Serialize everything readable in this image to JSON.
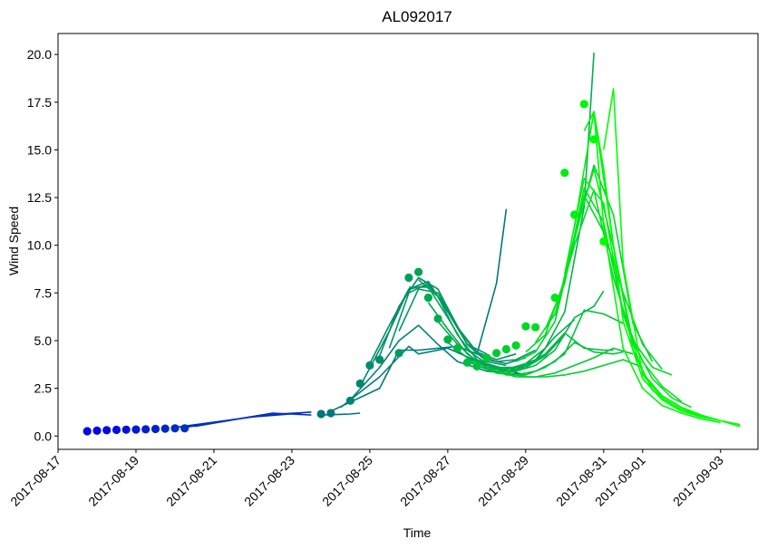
{
  "chart_data": {
    "type": "line",
    "title": "AL092017",
    "xlabel": "Time",
    "ylabel": "Wind Speed",
    "x_type": "date",
    "xlim": [
      "2017-08-17T00:00",
      "2017-09-03T23:00"
    ],
    "ylim": [
      -0.7,
      21.1
    ],
    "xticks": [
      "2017-08-17",
      "2017-08-19",
      "2017-08-21",
      "2017-08-23",
      "2017-08-25",
      "2017-08-27",
      "2017-08-29",
      "2017-08-31",
      "2017-09-01",
      "2017-09-03"
    ],
    "yticks": [
      0.0,
      2.5,
      5.0,
      7.5,
      10.0,
      12.5,
      15.0,
      17.5,
      20.0
    ],
    "ytick_labels": [
      "0.0",
      "2.5",
      "5.0",
      "7.5",
      "10.0",
      "12.5",
      "15.0",
      "17.5",
      "20.0"
    ],
    "grid": false,
    "legend": "none",
    "color_gradient": {
      "start": "#0000ee",
      "end": "#00ff00"
    },
    "observed": {
      "x": [
        "2017-08-17T18:00",
        "2017-08-18T00:00",
        "2017-08-18T06:00",
        "2017-08-18T12:00",
        "2017-08-18T18:00",
        "2017-08-19T00:00",
        "2017-08-19T06:00",
        "2017-08-19T12:00",
        "2017-08-19T18:00",
        "2017-08-20T00:00",
        "2017-08-20T06:00",
        "2017-08-23T18:00",
        "2017-08-24T00:00",
        "2017-08-24T12:00",
        "2017-08-24T18:00",
        "2017-08-25T00:00",
        "2017-08-25T06:00",
        "2017-08-25T18:00",
        "2017-08-26T00:00",
        "2017-08-26T06:00",
        "2017-08-26T12:00",
        "2017-08-26T18:00",
        "2017-08-27T00:00",
        "2017-08-27T06:00",
        "2017-08-27T12:00",
        "2017-08-27T18:00",
        "2017-08-28T00:00",
        "2017-08-28T06:00",
        "2017-08-28T12:00",
        "2017-08-28T18:00",
        "2017-08-29T00:00",
        "2017-08-29T06:00",
        "2017-08-29T18:00",
        "2017-08-30T00:00",
        "2017-08-30T06:00",
        "2017-08-30T12:00",
        "2017-08-30T18:00",
        "2017-08-31T00:00"
      ],
      "y": [
        0.25,
        0.28,
        0.3,
        0.32,
        0.33,
        0.34,
        0.35,
        0.37,
        0.39,
        0.4,
        0.4,
        1.15,
        1.2,
        1.85,
        2.75,
        3.7,
        4.0,
        4.35,
        8.3,
        8.6,
        7.25,
        6.15,
        5.05,
        4.6,
        3.85,
        3.65,
        4.1,
        4.35,
        4.55,
        4.75,
        5.75,
        5.7,
        7.25,
        13.8,
        11.6,
        17.4,
        15.55,
        10.2
      ]
    },
    "forecasts": [
      {
        "x": [
          "2017-08-20T00:00",
          "2017-08-22T00:00",
          "2017-08-23T06:00"
        ],
        "y": [
          0.45,
          1.0,
          1.2
        ]
      },
      {
        "x": [
          "2017-08-20T06:00",
          "2017-08-22T06:00",
          "2017-08-23T12:00"
        ],
        "y": [
          0.45,
          1.1,
          1.25
        ]
      },
      {
        "x": [
          "2017-08-20T12:00",
          "2017-08-22T12:00",
          "2017-08-23T12:00"
        ],
        "y": [
          0.5,
          1.2,
          1.1
        ]
      },
      {
        "x": [
          "2017-08-23T18:00",
          "2017-08-24T12:00",
          "2017-08-24T18:00"
        ],
        "y": [
          1.1,
          1.15,
          1.2
        ]
      },
      {
        "x": [
          "2017-08-24T00:00",
          "2017-08-25T06:00",
          "2017-08-25T18:00",
          "2017-08-26T06:00",
          "2017-08-26T18:00",
          "2017-08-27T06:00",
          "2017-08-27T18:00",
          "2017-08-28T06:00",
          "2017-08-28T12:00"
        ],
        "y": [
          1.3,
          2.5,
          4.5,
          4.5,
          4.6,
          4.7,
          4.3,
          8.0,
          11.9
        ]
      },
      {
        "x": [
          "2017-08-24T06:00",
          "2017-08-25T06:00",
          "2017-08-26T00:00",
          "2017-08-26T06:00",
          "2017-08-27T00:00",
          "2017-08-28T00:00",
          "2017-08-29T00:00"
        ],
        "y": [
          1.5,
          3.1,
          4.7,
          4.3,
          4.6,
          3.7,
          3.2
        ]
      },
      {
        "x": [
          "2017-08-24T12:00",
          "2017-08-25T06:00",
          "2017-08-25T18:00",
          "2017-08-26T06:00",
          "2017-08-26T18:00",
          "2017-08-27T06:00",
          "2017-08-28T00:00",
          "2017-08-29T00:00"
        ],
        "y": [
          1.9,
          3.6,
          5.0,
          5.8,
          4.8,
          3.9,
          3.4,
          3.2
        ]
      },
      {
        "x": [
          "2017-08-24T18:00",
          "2017-08-25T12:00",
          "2017-08-26T00:00",
          "2017-08-26T12:00",
          "2017-08-27T00:00",
          "2017-08-27T12:00",
          "2017-08-28T00:00"
        ],
        "y": [
          2.6,
          5.5,
          7.7,
          8.1,
          6.5,
          4.8,
          4.3
        ]
      },
      {
        "x": [
          "2017-08-25T00:00",
          "2017-08-25T12:00",
          "2017-08-26T00:00",
          "2017-08-26T12:00",
          "2017-08-27T00:00",
          "2017-08-27T12:00",
          "2017-08-28T00:00",
          "2017-08-28T12:00"
        ],
        "y": [
          3.8,
          5.8,
          7.7,
          7.9,
          6.7,
          4.8,
          3.9,
          3.7
        ]
      },
      {
        "x": [
          "2017-08-25T06:00",
          "2017-08-25T18:00",
          "2017-08-26T06:00",
          "2017-08-26T18:00",
          "2017-08-27T06:00",
          "2017-08-27T18:00",
          "2017-08-28T06:00",
          "2017-08-28T18:00"
        ],
        "y": [
          4.2,
          6.8,
          8.3,
          7.7,
          5.7,
          4.4,
          4.0,
          4.3
        ]
      },
      {
        "x": [
          "2017-08-25T12:00",
          "2017-08-26T00:00",
          "2017-08-26T12:00",
          "2017-08-27T00:00",
          "2017-08-27T12:00",
          "2017-08-28T00:00",
          "2017-08-28T12:00",
          "2017-08-29T00:00"
        ],
        "y": [
          4.6,
          7.5,
          8.0,
          6.6,
          4.8,
          4.0,
          3.8,
          4.1
        ]
      },
      {
        "x": [
          "2017-08-25T18:00",
          "2017-08-26T06:00",
          "2017-08-26T18:00",
          "2017-08-27T06:00",
          "2017-08-27T18:00",
          "2017-08-28T06:00",
          "2017-08-28T18:00",
          "2017-08-29T06:00"
        ],
        "y": [
          5.5,
          7.7,
          7.5,
          5.7,
          4.3,
          3.9,
          4.0,
          4.5
        ]
      },
      {
        "x": [
          "2017-08-26T00:00",
          "2017-08-26T12:00",
          "2017-08-27T00:00",
          "2017-08-27T12:00",
          "2017-08-28T00:00",
          "2017-08-28T12:00",
          "2017-08-29T00:00",
          "2017-08-29T12:00"
        ],
        "y": [
          7.8,
          7.8,
          6.2,
          4.5,
          3.8,
          3.5,
          3.7,
          4.3
        ]
      },
      {
        "x": [
          "2017-08-26T06:00",
          "2017-08-26T18:00",
          "2017-08-27T06:00",
          "2017-08-27T18:00",
          "2017-08-28T06:00",
          "2017-08-28T18:00",
          "2017-08-29T06:00",
          "2017-08-29T12:00"
        ],
        "y": [
          8.2,
          7.3,
          5.3,
          4.0,
          3.6,
          3.5,
          3.9,
          4.6
        ]
      },
      {
        "x": [
          "2017-08-26T12:00",
          "2017-08-27T00:00",
          "2017-08-27T12:00",
          "2017-08-28T00:00",
          "2017-08-28T12:00",
          "2017-08-29T00:00",
          "2017-08-29T12:00",
          "2017-08-30T00:00"
        ],
        "y": [
          7.0,
          5.6,
          4.3,
          3.6,
          3.4,
          3.6,
          4.2,
          5.3
        ]
      },
      {
        "x": [
          "2017-08-26T18:00",
          "2017-08-27T06:00",
          "2017-08-27T18:00",
          "2017-08-28T06:00",
          "2017-08-28T18:00",
          "2017-08-29T06:00",
          "2017-08-29T18:00",
          "2017-08-30T06:00"
        ],
        "y": [
          6.0,
          4.8,
          3.9,
          3.6,
          3.6,
          4.0,
          5.2,
          6.1
        ]
      },
      {
        "x": [
          "2017-08-27T00:00",
          "2017-08-27T12:00",
          "2017-08-28T00:00",
          "2017-08-28T12:00",
          "2017-08-29T00:00",
          "2017-08-29T12:00",
          "2017-08-30T00:00",
          "2017-08-30T12:00",
          "2017-08-30T18:00"
        ],
        "y": [
          4.9,
          4.1,
          3.6,
          3.5,
          3.8,
          4.6,
          6.5,
          12.0,
          20.1
        ]
      },
      {
        "x": [
          "2017-08-27T06:00",
          "2017-08-27T18:00",
          "2017-08-28T06:00",
          "2017-08-28T18:00",
          "2017-08-29T06:00",
          "2017-08-29T18:00",
          "2017-08-30T06:00",
          "2017-08-30T18:00",
          "2017-08-31T00:00"
        ],
        "y": [
          4.5,
          3.7,
          3.4,
          3.4,
          3.7,
          4.5,
          6.2,
          6.8,
          7.6
        ]
      },
      {
        "x": [
          "2017-08-27T12:00",
          "2017-08-28T00:00",
          "2017-08-28T12:00",
          "2017-08-29T00:00",
          "2017-08-29T12:00",
          "2017-08-30T00:00",
          "2017-08-30T12:00",
          "2017-08-31T00:00",
          "2017-08-31T06:00"
        ],
        "y": [
          3.9,
          3.5,
          3.3,
          3.6,
          4.3,
          5.4,
          4.6,
          4.5,
          4.5
        ]
      },
      {
        "x": [
          "2017-08-27T18:00",
          "2017-08-28T06:00",
          "2017-08-28T18:00",
          "2017-08-29T06:00",
          "2017-08-29T18:00",
          "2017-08-30T06:00",
          "2017-08-30T18:00",
          "2017-08-31T06:00",
          "2017-08-31T12:00"
        ],
        "y": [
          3.7,
          3.3,
          3.2,
          3.4,
          3.9,
          4.9,
          4.4,
          4.3,
          4.4
        ]
      },
      {
        "x": [
          "2017-08-28T00:00",
          "2017-08-28T12:00",
          "2017-08-29T00:00",
          "2017-08-29T12:00",
          "2017-08-30T00:00",
          "2017-08-30T12:00",
          "2017-08-31T00:00",
          "2017-08-31T12:00"
        ],
        "y": [
          3.6,
          3.2,
          3.2,
          3.6,
          4.3,
          6.6,
          6.4,
          5.9
        ]
      },
      {
        "x": [
          "2017-08-28T06:00",
          "2017-08-28T18:00",
          "2017-08-29T06:00",
          "2017-08-29T18:00",
          "2017-08-30T06:00",
          "2017-08-30T18:00",
          "2017-08-31T06:00",
          "2017-08-31T18:00"
        ],
        "y": [
          3.4,
          3.1,
          3.1,
          3.3,
          3.7,
          4.1,
          4.6,
          4.3
        ]
      },
      {
        "x": [
          "2017-08-28T12:00",
          "2017-08-29T00:00",
          "2017-08-29T12:00",
          "2017-08-30T00:00",
          "2017-08-30T12:00",
          "2017-08-31T00:00",
          "2017-08-31T12:00",
          "2017-09-01T00:00"
        ],
        "y": [
          3.3,
          3.1,
          3.1,
          3.2,
          3.4,
          3.7,
          4.0,
          3.6
        ]
      },
      {
        "x": [
          "2017-08-28T18:00",
          "2017-08-29T06:00",
          "2017-08-29T18:00",
          "2017-08-30T06:00",
          "2017-08-30T18:00",
          "2017-08-31T06:00",
          "2017-08-31T18:00",
          "2017-09-01T06:00"
        ],
        "y": [
          3.9,
          4.4,
          6.0,
          10.3,
          14.2,
          11.6,
          5.9,
          3.9
        ]
      },
      {
        "x": [
          "2017-08-29T00:00",
          "2017-08-29T12:00",
          "2017-08-30T00:00",
          "2017-08-30T12:00",
          "2017-08-31T00:00",
          "2017-08-31T12:00",
          "2017-09-01T00:00",
          "2017-09-01T12:00"
        ],
        "y": [
          4.4,
          5.3,
          8.2,
          12.6,
          10.7,
          7.5,
          4.8,
          3.5
        ]
      },
      {
        "x": [
          "2017-08-29T06:00",
          "2017-08-29T18:00",
          "2017-08-30T06:00",
          "2017-08-30T18:00",
          "2017-08-31T06:00",
          "2017-08-31T18:00",
          "2017-09-01T06:00",
          "2017-09-01T18:00"
        ],
        "y": [
          4.9,
          6.4,
          10.0,
          12.9,
          8.3,
          5.0,
          3.6,
          3.2
        ]
      },
      {
        "x": [
          "2017-08-29T12:00",
          "2017-08-30T00:00",
          "2017-08-30T12:00",
          "2017-08-31T00:00",
          "2017-08-31T12:00",
          "2017-09-01T00:00",
          "2017-09-01T12:00",
          "2017-09-02T00:00"
        ],
        "y": [
          5.6,
          8.0,
          13.0,
          11.2,
          6.4,
          3.9,
          2.6,
          1.8
        ]
      },
      {
        "x": [
          "2017-08-29T18:00",
          "2017-08-30T06:00",
          "2017-08-30T18:00",
          "2017-08-31T06:00",
          "2017-08-31T18:00",
          "2017-09-01T06:00",
          "2017-09-01T18:00",
          "2017-09-02T06:00"
        ],
        "y": [
          6.3,
          10.5,
          14.0,
          9.9,
          4.9,
          3.0,
          2.0,
          1.5
        ]
      },
      {
        "x": [
          "2017-08-30T00:00",
          "2017-08-30T12:00",
          "2017-08-31T00:00",
          "2017-08-31T12:00",
          "2017-09-01T00:00",
          "2017-09-01T12:00",
          "2017-09-02T00:00",
          "2017-09-02T12:00"
        ],
        "y": [
          8.5,
          13.5,
          12.2,
          6.4,
          3.3,
          2.1,
          1.5,
          1.1
        ]
      },
      {
        "x": [
          "2017-08-30T06:00",
          "2017-08-30T18:00",
          "2017-08-31T06:00",
          "2017-08-31T18:00",
          "2017-09-01T06:00",
          "2017-09-01T18:00",
          "2017-09-02T06:00",
          "2017-09-02T18:00"
        ],
        "y": [
          11.0,
          17.0,
          10.0,
          4.5,
          2.4,
          1.6,
          1.2,
          0.9
        ]
      },
      {
        "x": [
          "2017-08-30T12:00",
          "2017-08-30T18:00",
          "2017-08-31T00:00",
          "2017-08-31T12:00",
          "2017-09-01T00:00",
          "2017-09-01T12:00",
          "2017-09-02T00:00",
          "2017-09-02T12:00",
          "2017-09-03T00:00"
        ],
        "y": [
          16.0,
          17.0,
          11.0,
          4.6,
          2.5,
          1.6,
          1.2,
          0.9,
          0.7
        ]
      },
      {
        "x": [
          "2017-08-30T18:00",
          "2017-08-31T00:00",
          "2017-08-31T12:00",
          "2017-09-01T00:00",
          "2017-09-01T12:00",
          "2017-09-02T00:00",
          "2017-09-02T12:00",
          "2017-09-03T00:00",
          "2017-09-03T12:00"
        ],
        "y": [
          17.0,
          14.0,
          6.0,
          3.0,
          1.9,
          1.3,
          1.0,
          0.8,
          0.6
        ]
      },
      {
        "x": [
          "2017-08-31T00:00",
          "2017-08-31T06:00",
          "2017-08-31T12:00",
          "2017-09-01T00:00",
          "2017-09-01T12:00",
          "2017-09-02T00:00",
          "2017-09-02T12:00",
          "2017-09-03T00:00",
          "2017-09-03T12:00"
        ],
        "y": [
          15.0,
          18.2,
          9.0,
          3.2,
          2.0,
          1.4,
          1.1,
          0.8,
          0.5
        ]
      }
    ]
  }
}
